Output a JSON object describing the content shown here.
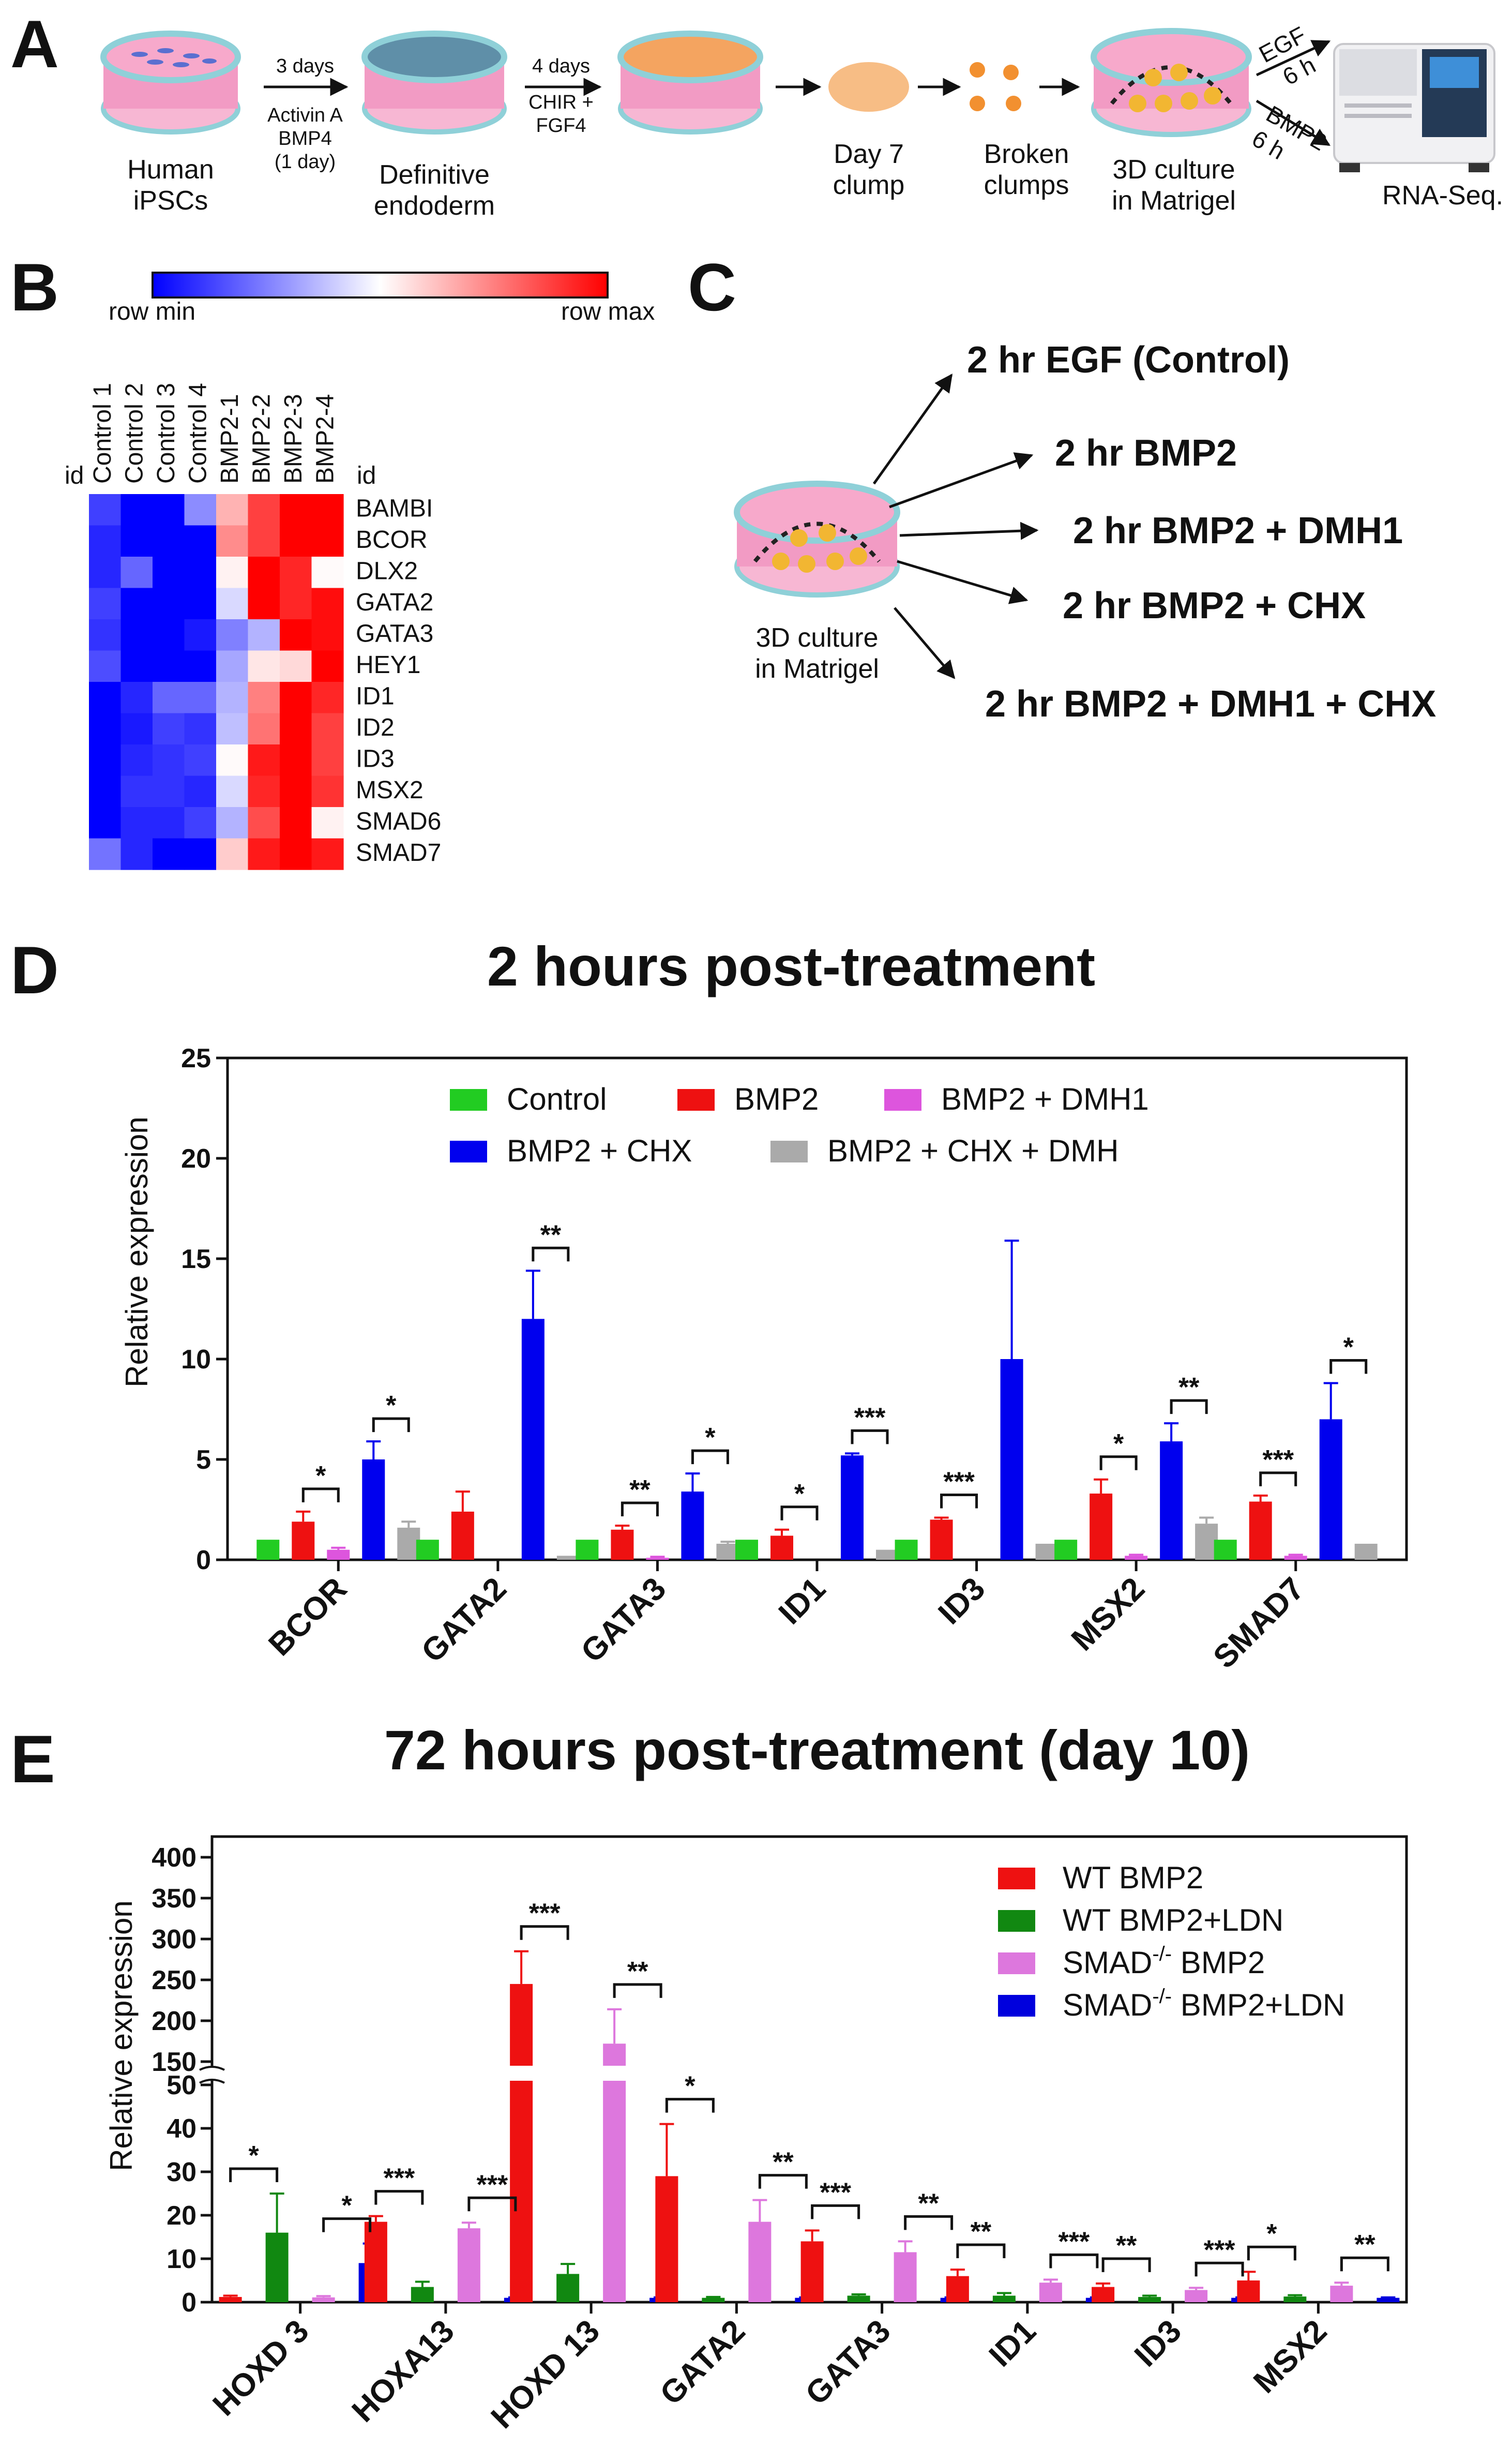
{
  "panel_letters": {
    "a": "A",
    "b": "B",
    "c": "C",
    "d": "D",
    "e": "E"
  },
  "panel_a": {
    "steps": {
      "ipsc_line1": "Human",
      "ipsc_line2": "iPSCs",
      "arrow1_top": "3 days",
      "arrow1_mid1": "Activin A",
      "arrow1_mid2": "BMP4",
      "arrow1_mid3": "(1 day)",
      "de_line1": "Definitive",
      "de_line2": "endoderm",
      "arrow2_top": "4 days",
      "arrow2_mid1": "CHIR +",
      "arrow2_mid2": "FGF4",
      "clump_line1": "Day 7",
      "clump_line2": "clump",
      "broken_line1": "Broken",
      "broken_line2": "clumps",
      "culture_line1": "3D culture",
      "culture_line2": "in Matrigel",
      "egf_label": "EGF",
      "egf_time": "6 h",
      "bmp2_label": "BMP2",
      "bmp2_time": "6 h",
      "rnaseq": "RNA-Seq."
    },
    "colors": {
      "dish_pink": "#f29bc4",
      "dish_rim": "#8fd0d8",
      "endoderm": "#5f8fa8",
      "orange": "#f4a460",
      "dots": "#f2b632"
    }
  },
  "panel_b": {
    "scale_min_label": "row min",
    "scale_max_label": "row max",
    "id_label_left": "id",
    "id_label_right": "id",
    "columns": [
      "Control 1",
      "Control 2",
      "Control 3",
      "Control 4",
      "BMP2-1",
      "BMP2-2",
      "BMP2-3",
      "BMP2-4"
    ],
    "rows": [
      "BAMBI",
      "BCOR",
      "DLX2",
      "GATA2",
      "GATA3",
      "HEY1",
      "ID1",
      "ID2",
      "ID3",
      "MSX2",
      "SMAD6",
      "SMAD7"
    ],
    "heat_values": [
      [
        -0.75,
        -1.0,
        -1.0,
        -0.45,
        0.3,
        0.75,
        1.0,
        1.0
      ],
      [
        -0.85,
        -1.0,
        -1.0,
        -1.0,
        0.45,
        0.75,
        1.0,
        1.0
      ],
      [
        -0.85,
        -0.6,
        -1.0,
        -1.0,
        0.05,
        1.0,
        0.85,
        0.02
      ],
      [
        -0.75,
        -1.0,
        -1.0,
        -1.0,
        -0.15,
        1.0,
        0.85,
        0.95
      ],
      [
        -0.8,
        -1.0,
        -1.0,
        -0.9,
        -0.5,
        -0.3,
        1.0,
        0.95
      ],
      [
        -0.7,
        -1.0,
        -1.0,
        -1.0,
        -0.35,
        0.1,
        0.15,
        1.0
      ],
      [
        -1.0,
        -0.85,
        -0.6,
        -0.6,
        -0.3,
        0.5,
        1.0,
        0.85
      ],
      [
        -1.0,
        -0.9,
        -0.75,
        -0.8,
        -0.25,
        0.55,
        1.0,
        0.75
      ],
      [
        -1.0,
        -0.85,
        -0.8,
        -0.75,
        0.02,
        0.9,
        1.0,
        0.75
      ],
      [
        -1.0,
        -0.8,
        -0.8,
        -0.85,
        -0.15,
        0.85,
        1.0,
        0.8
      ],
      [
        -1.0,
        -0.85,
        -0.85,
        -0.75,
        -0.3,
        0.7,
        1.0,
        0.05
      ],
      [
        -0.55,
        -0.85,
        -1.0,
        -1.0,
        0.2,
        0.9,
        1.0,
        0.9
      ]
    ],
    "colors": {
      "min": "#0000ff",
      "mid": "#ffffff",
      "max": "#ff0000"
    }
  },
  "panel_c": {
    "culture_line1": "3D culture",
    "culture_line2": "in Matrigel",
    "treatments": [
      "2 hr EGF (Control)",
      "2 hr BMP2",
      "2 hr BMP2 + DMH1",
      "2 hr BMP2 + CHX",
      "2 hr BMP2 + DMH1 + CHX"
    ]
  },
  "chart_data": [
    {
      "type": "bar",
      "title": "2 hours post-treatment",
      "xlabel": "",
      "ylabel": "Relative expression",
      "ylim": [
        0,
        25
      ],
      "yticks": [
        0,
        5,
        10,
        15,
        20,
        25
      ],
      "categories": [
        "BCOR",
        "GATA2",
        "GATA3",
        "ID1",
        "ID3",
        "MSX2",
        "SMAD7"
      ],
      "series": [
        {
          "name": "Control",
          "color": "#22cc22",
          "values": [
            1,
            1,
            1,
            1,
            1,
            1,
            1
          ],
          "errors": [
            0,
            0,
            0,
            0,
            0,
            0,
            0
          ]
        },
        {
          "name": "BMP2",
          "color": "#ee1111",
          "values": [
            1.9,
            2.4,
            1.5,
            1.2,
            2.0,
            3.3,
            2.9
          ],
          "errors": [
            0.5,
            1.0,
            0.2,
            0.3,
            0.1,
            0.7,
            0.3
          ]
        },
        {
          "name": "BMP2 + DMH1",
          "color": "#dd55dd",
          "values": [
            0.5,
            0,
            0.1,
            0,
            0,
            0.2,
            0.2
          ],
          "errors": [
            0.1,
            0,
            0.05,
            0,
            0,
            0.05,
            0.05
          ]
        },
        {
          "name": "BMP2 + CHX",
          "color": "#0000ee",
          "values": [
            5.0,
            12.0,
            3.4,
            5.2,
            10.0,
            5.9,
            7.0
          ],
          "errors": [
            0.9,
            2.4,
            0.9,
            0.1,
            5.9,
            0.9,
            1.8
          ]
        },
        {
          "name": "BMP2 + CHX + DMH",
          "color": "#aaaaaa",
          "values": [
            1.6,
            0.2,
            0.8,
            0.5,
            0.8,
            1.8,
            0.8
          ],
          "errors": [
            0.3,
            0,
            0.1,
            0,
            0,
            0.3,
            0
          ]
        }
      ],
      "significance": [
        {
          "category": 0,
          "from": 1,
          "to": 2,
          "label": "*"
        },
        {
          "category": 0,
          "from": 3,
          "to": 4,
          "label": "*"
        },
        {
          "category": 1,
          "from": 3,
          "to": 4,
          "label": "**"
        },
        {
          "category": 2,
          "from": 1,
          "to": 2,
          "label": "**"
        },
        {
          "category": 2,
          "from": 3,
          "to": 4,
          "label": "*"
        },
        {
          "category": 3,
          "from": 1,
          "to": 2,
          "label": "*"
        },
        {
          "category": 3,
          "from": 3,
          "to": 4,
          "label": "***"
        },
        {
          "category": 4,
          "from": 1,
          "to": 2,
          "label": "***"
        },
        {
          "category": 5,
          "from": 1,
          "to": 2,
          "label": "*"
        },
        {
          "category": 5,
          "from": 3,
          "to": 4,
          "label": "**"
        },
        {
          "category": 6,
          "from": 1,
          "to": 2,
          "label": "***"
        },
        {
          "category": 6,
          "from": 3,
          "to": 4,
          "label": "*"
        }
      ],
      "legend_position": "top-center"
    },
    {
      "type": "bar",
      "title": "72 hours post-treatment (day 10)",
      "xlabel": "",
      "ylabel": "Relative expression",
      "axis_break": {
        "lower": [
          0,
          50
        ],
        "upper": [
          150,
          400
        ]
      },
      "yticks_lower": [
        0,
        10,
        20,
        30,
        40,
        50
      ],
      "yticks_upper": [
        150,
        200,
        250,
        300,
        350,
        400
      ],
      "categories": [
        "HOXD 3",
        "HOXA13",
        "HOXD 13",
        "GATA2",
        "GATA3",
        "ID1",
        "ID3",
        "MSX2"
      ],
      "series": [
        {
          "name": "WT BMP2",
          "legend_main": "WT BMP2",
          "legend_sup": "",
          "legend_tail": "",
          "color": "#ee1111",
          "values": [
            1.2,
            18.5,
            245,
            29,
            14,
            6,
            3.5,
            5
          ],
          "errors": [
            0.3,
            1.3,
            40,
            12,
            2.5,
            1.5,
            0.8,
            2
          ]
        },
        {
          "name": "WT BMP2+LDN",
          "legend_main": "WT BMP2+LDN",
          "legend_sup": "",
          "legend_tail": "",
          "color": "#118811",
          "values": [
            16,
            3.5,
            6.5,
            1,
            1.5,
            1.5,
            1.2,
            1.3
          ],
          "errors": [
            9,
            1.2,
            2.3,
            0.2,
            0.3,
            0.6,
            0.3,
            0.3
          ]
        },
        {
          "name": "SMAD-/- BMP2",
          "legend_main": "SMAD",
          "legend_sup": "-/-",
          "legend_tail": " BMP2",
          "color": "#dd77dd",
          "values": [
            1.1,
            17,
            172,
            18.5,
            11.5,
            4.5,
            2.8,
            3.8
          ],
          "errors": [
            0.3,
            1.3,
            42,
            5,
            2.5,
            0.7,
            0.5,
            0.7
          ]
        },
        {
          "name": "SMAD-/- BMP2+LDN",
          "legend_main": "SMAD",
          "legend_sup": "-/-",
          "legend_tail": " BMP2+LDN",
          "color": "#0000dd",
          "values": [
            9,
            1,
            1,
            1,
            1,
            1,
            1,
            1
          ],
          "errors": [
            4.5,
            0.1,
            0.1,
            0.1,
            0.1,
            0.1,
            0.1,
            0.1
          ]
        }
      ],
      "significance": [
        {
          "category": 0,
          "from": 0,
          "to": 1,
          "label": "*"
        },
        {
          "category": 0,
          "from": 2,
          "to": 3,
          "label": "*"
        },
        {
          "category": 1,
          "from": 0,
          "to": 1,
          "label": "***"
        },
        {
          "category": 1,
          "from": 2,
          "to": 3,
          "label": "***"
        },
        {
          "category": 2,
          "from": 0,
          "to": 1,
          "label": "***"
        },
        {
          "category": 2,
          "from": 2,
          "to": 3,
          "label": "**"
        },
        {
          "category": 3,
          "from": 0,
          "to": 1,
          "label": "*"
        },
        {
          "category": 3,
          "from": 2,
          "to": 3,
          "label": "**"
        },
        {
          "category": 4,
          "from": 0,
          "to": 1,
          "label": "***"
        },
        {
          "category": 4,
          "from": 2,
          "to": 3,
          "label": "**"
        },
        {
          "category": 5,
          "from": 0,
          "to": 1,
          "label": "**"
        },
        {
          "category": 5,
          "from": 2,
          "to": 3,
          "label": "***"
        },
        {
          "category": 6,
          "from": 0,
          "to": 1,
          "label": "**"
        },
        {
          "category": 6,
          "from": 2,
          "to": 3,
          "label": "***"
        },
        {
          "category": 7,
          "from": 0,
          "to": 1,
          "label": "*"
        },
        {
          "category": 7,
          "from": 2,
          "to": 3,
          "label": "**"
        }
      ],
      "legend_position": "top-right"
    }
  ]
}
